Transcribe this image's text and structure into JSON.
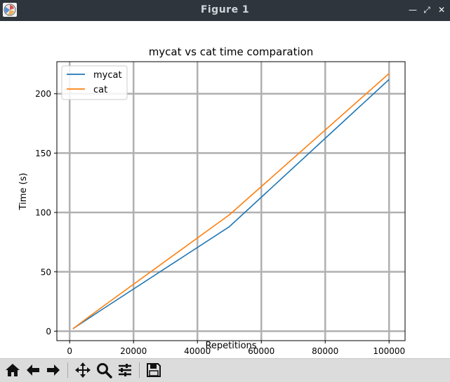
{
  "window": {
    "title": "Figure 1",
    "buttons": [
      "minimize",
      "maximize",
      "close"
    ]
  },
  "toolbar": {
    "buttons": [
      "home-icon",
      "back-icon",
      "forward-icon",
      "pan-icon",
      "zoom-icon",
      "configure-subplots-icon",
      "save-icon"
    ]
  },
  "chart_data": {
    "type": "line",
    "title": "mycat vs cat time comparation",
    "xlabel": "Repetitions",
    "ylabel": "Time (s)",
    "xlim": [
      -4000,
      105000
    ],
    "ylim": [
      -8,
      227
    ],
    "xticks": [
      0,
      20000,
      40000,
      60000,
      80000,
      100000
    ],
    "yticks": [
      0,
      50,
      100,
      150,
      200
    ],
    "grid": true,
    "legend_position": "upper-left",
    "series": [
      {
        "name": "mycat",
        "color": "#1f77b4",
        "x": [
          1000,
          10000,
          50000,
          100000
        ],
        "y": [
          2,
          18,
          88,
          212
        ]
      },
      {
        "name": "cat",
        "color": "#ff7f0e",
        "x": [
          1000,
          10000,
          50000,
          100000
        ],
        "y": [
          2,
          20,
          98,
          217
        ]
      }
    ]
  }
}
